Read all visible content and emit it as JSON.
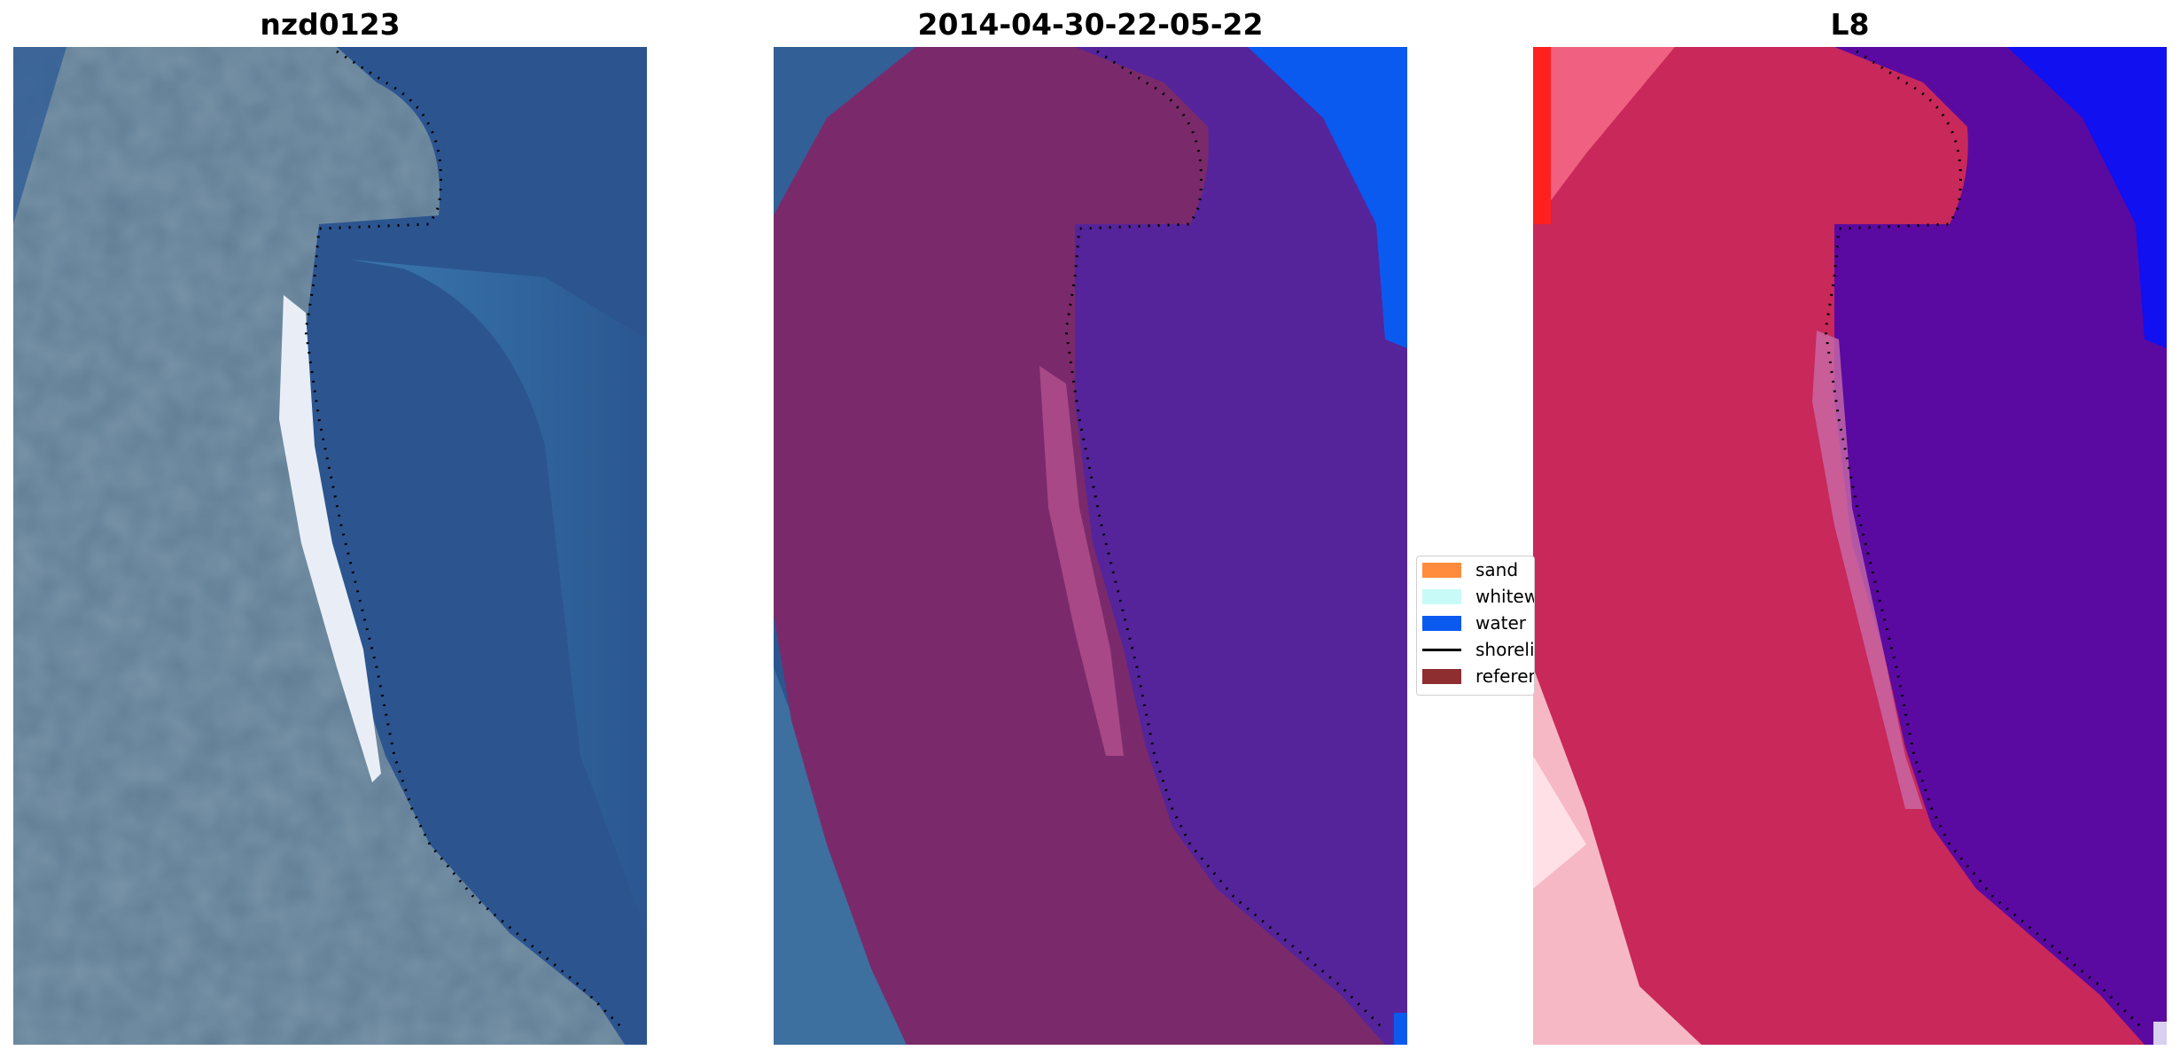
{
  "panels": [
    {
      "title": "nzd0123"
    },
    {
      "title": "2014-04-30-22-05-22"
    },
    {
      "title": "L8"
    }
  ],
  "legend": {
    "items": [
      {
        "label": "sand",
        "kind": "patch",
        "color": "#ff8c3c"
      },
      {
        "label": "whitewater",
        "kind": "patch",
        "color": "#c8fbf7"
      },
      {
        "label": "water",
        "kind": "patch",
        "color": "#0a5af0"
      },
      {
        "label": "shoreline",
        "kind": "line",
        "color": "#000000"
      },
      {
        "label": "reference",
        "kind": "patch",
        "color": "#8e2e30"
      }
    ]
  },
  "colors": {
    "ocean_blue": "#2c5590",
    "land_grey": "#6f8a9e",
    "beach_white": "#e8eef5",
    "classified_land_overlay": "#7a2a6a",
    "classified_water_overlay": "#55249a",
    "mndwi_land": "#c8285a",
    "mndwi_water": "#5a0aa0"
  }
}
